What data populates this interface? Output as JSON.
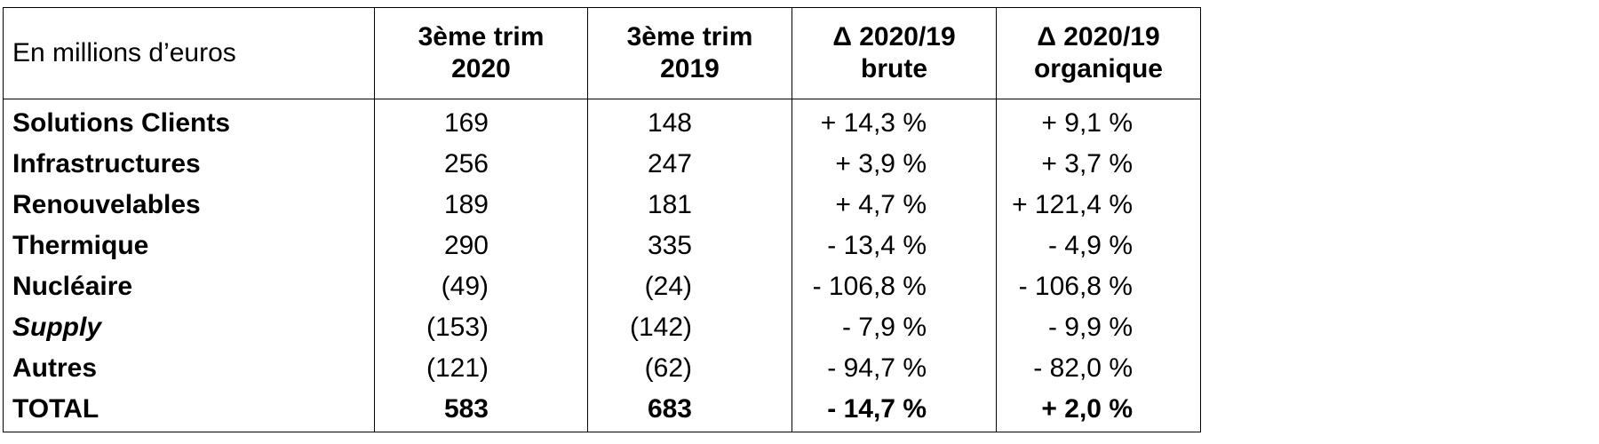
{
  "table": {
    "headers": [
      {
        "line1": "En millions d’euros",
        "line2": ""
      },
      {
        "line1": "3ème trim",
        "line2": "2020"
      },
      {
        "line1": "3ème trim",
        "line2": "2019"
      },
      {
        "line1": "Δ 2020/19",
        "line2": "brute"
      },
      {
        "line1": "Δ 2020/19",
        "line2": "organique"
      }
    ],
    "rows": [
      {
        "label": "Solutions Clients",
        "q3_2020": "169",
        "q3_2019": "148",
        "delta_brute": "+ 14,3 %",
        "delta_organique": "+ 9,1 %"
      },
      {
        "label": "Infrastructures",
        "q3_2020": "256",
        "q3_2019": "247",
        "delta_brute": "+ 3,9 %",
        "delta_organique": "+ 3,7 %"
      },
      {
        "label": "Renouvelables",
        "q3_2020": "189",
        "q3_2019": "181",
        "delta_brute": "+ 4,7 %",
        "delta_organique": "+ 121,4 %"
      },
      {
        "label": "Thermique",
        "q3_2020": "290",
        "q3_2019": "335",
        "delta_brute": "- 13,4 %",
        "delta_organique": "- 4,9 %"
      },
      {
        "label": "Nucléaire",
        "q3_2020": "(49)",
        "q3_2019": "(24)",
        "delta_brute": "- 106,8 %",
        "delta_organique": "- 106,8 %"
      },
      {
        "label": "Supply",
        "q3_2020": "(153)",
        "q3_2019": "(142)",
        "delta_brute": "- 7,9 %",
        "delta_organique": "- 9,9 %"
      },
      {
        "label": "Autres",
        "q3_2020": "(121)",
        "q3_2019": "(62)",
        "delta_brute": "- 94,7 %",
        "delta_organique": "- 82,0 %"
      },
      {
        "label": "TOTAL",
        "q3_2020": "583",
        "q3_2019": "683",
        "delta_brute": "- 14,7 %",
        "delta_organique": "+ 2,0 %"
      }
    ]
  }
}
